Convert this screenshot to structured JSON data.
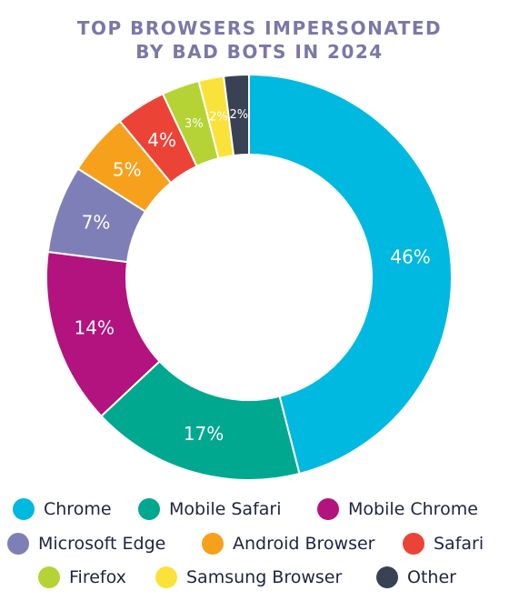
{
  "chart_data": {
    "type": "pie",
    "title_lines": [
      "TOP BROWSERS IMPERSONATED",
      "BY BAD BOTS IN 2024"
    ],
    "slices": [
      {
        "name": "Chrome",
        "value": 46,
        "label": "46%",
        "color": "#00b9e0"
      },
      {
        "name": "Mobile Safari",
        "value": 17,
        "label": "17%",
        "color": "#00a88f"
      },
      {
        "name": "Mobile Chrome",
        "value": 14,
        "label": "14%",
        "color": "#b3137e"
      },
      {
        "name": "Microsoft Edge",
        "value": 7,
        "label": "7%",
        "color": "#7f7fb8"
      },
      {
        "name": "Android Browser",
        "value": 5,
        "label": "5%",
        "color": "#f7a01c"
      },
      {
        "name": "Safari",
        "value": 4,
        "label": "4%",
        "color": "#ec4337"
      },
      {
        "name": "Firefox",
        "value": 3,
        "label": "3%",
        "color": "#b5d334"
      },
      {
        "name": "Samsung Browser",
        "value": 2,
        "label": "2%",
        "color": "#fbe23a"
      },
      {
        "name": "Other",
        "value": 2,
        "label": "2%",
        "color": "#394254"
      }
    ],
    "legend_placement": "bottom"
  }
}
